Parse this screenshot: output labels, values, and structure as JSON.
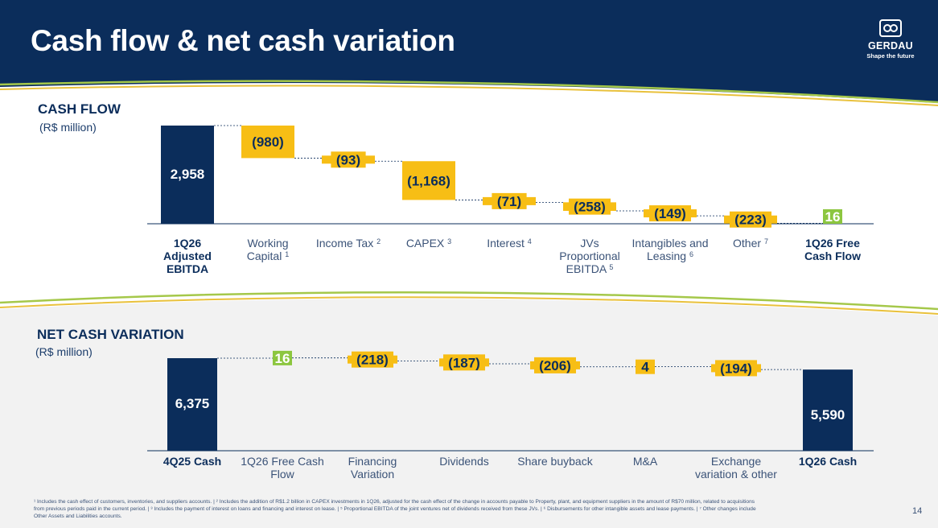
{
  "title": "Cash flow & net cash variation",
  "logo": {
    "name": "GERDAU",
    "tagline": "Shape the future"
  },
  "cash_flow_section": {
    "title": "CASH FLOW",
    "subtitle": "(R$ million)"
  },
  "net_cash_section": {
    "title": "NET CASH VARIATION",
    "subtitle": "(R$ million)"
  },
  "footnote": "¹ Includes the cash effect of customers, inventories, and suppliers accounts. | ² Includes the addition of R$1.2 billion in CAPEX investments in 1Q26, adjusted for the cash effect of the change in accounts payable to Property, plant, and equipment suppliers in the amount of R$70 million, related to acquisitions from previous periods paid in the current period. | ³ Includes the payment of interest on loans and financing and interest on lease. | ⁵ Proportional EBITDA of the joint ventures net of dividends received from these JVs. | ⁶ Disbursements for other intangible assets and lease payments. | ⁷ Other changes include Other Assets and Liabilities accounts.",
  "page_number": "14",
  "colors": {
    "navy": "#0b2d5b",
    "gold": "#f7be15",
    "green": "#8cc63f",
    "header_line_green": "#a5c84a",
    "header_line_gold": "#e9c13c"
  },
  "chart_data": [
    {
      "type": "waterfall",
      "title": "CASH FLOW",
      "unit": "(R$ million)",
      "categories": [
        {
          "label": "1Q26 Adjusted EBITDA",
          "sup": ""
        },
        {
          "label": "Working Capital",
          "sup": "1"
        },
        {
          "label": "Income Tax",
          "sup": "2"
        },
        {
          "label": "CAPEX",
          "sup": "3"
        },
        {
          "label": "Interest",
          "sup": "4"
        },
        {
          "label": "JVs Proportional EBITDA",
          "sup": "5"
        },
        {
          "label": "Intangibles and Leasing",
          "sup": "6"
        },
        {
          "label": "Other",
          "sup": "7"
        },
        {
          "label": "1Q26 Free Cash Flow",
          "sup": ""
        }
      ],
      "values": [
        2958,
        -980,
        -93,
        -1168,
        -71,
        -258,
        -149,
        -223,
        16
      ],
      "value_labels": [
        "2,958",
        "(980)",
        "(93)",
        "(1,168)",
        "(71)",
        "(258)",
        "(149)",
        "(223)",
        "16"
      ],
      "kinds": [
        "total",
        "delta",
        "delta",
        "delta",
        "delta",
        "delta",
        "delta",
        "delta",
        "total"
      ]
    },
    {
      "type": "waterfall",
      "title": "NET CASH VARIATION",
      "unit": "(R$ million)",
      "categories": [
        {
          "label": "4Q25 Cash",
          "sup": ""
        },
        {
          "label": "1Q26 Free Cash Flow",
          "sup": ""
        },
        {
          "label": "Financing Variation",
          "sup": ""
        },
        {
          "label": "Dividends",
          "sup": ""
        },
        {
          "label": "Share buyback",
          "sup": ""
        },
        {
          "label": "M&A",
          "sup": ""
        },
        {
          "label": "Exchange variation & other",
          "sup": ""
        },
        {
          "label": "1Q26 Cash",
          "sup": ""
        }
      ],
      "values": [
        6375,
        16,
        -218,
        -187,
        -206,
        4,
        -194,
        5590
      ],
      "value_labels": [
        "6,375",
        "16",
        "(218)",
        "(187)",
        "(206)",
        "4",
        "(194)",
        "5,590"
      ],
      "kinds": [
        "total",
        "delta",
        "delta",
        "delta",
        "delta",
        "delta",
        "delta",
        "total"
      ]
    }
  ]
}
